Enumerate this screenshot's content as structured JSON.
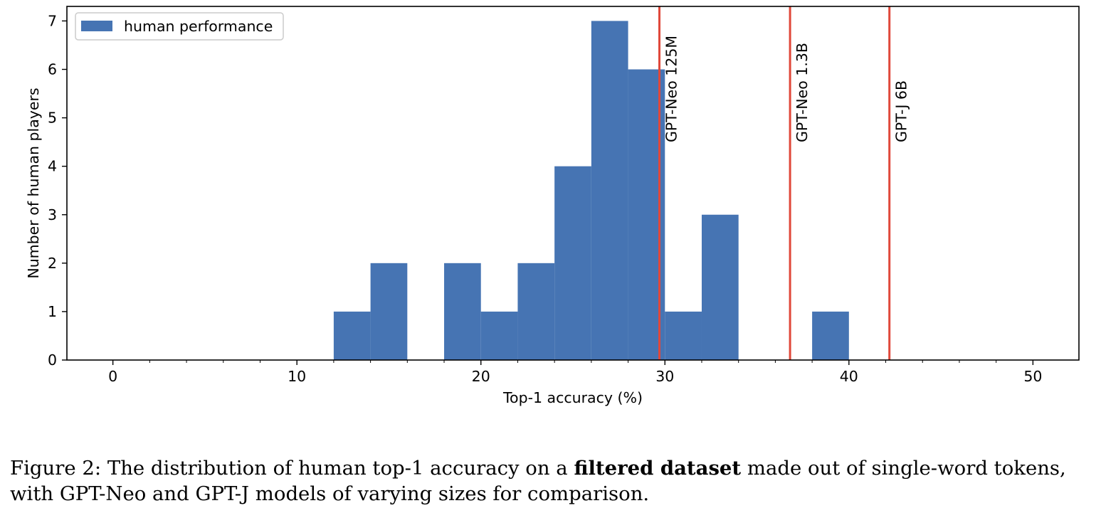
{
  "chart_data": {
    "type": "bar",
    "subtype": "histogram",
    "xlabel": "Top-1 accuracy (%)",
    "ylabel": "Number of human players",
    "xlim": [
      -2.5,
      52.5
    ],
    "ylim": [
      0,
      7.3
    ],
    "xticks": [
      0,
      10,
      20,
      30,
      40,
      50
    ],
    "xticks_minor": [
      2,
      4,
      6,
      8,
      12,
      14,
      16,
      18,
      22,
      24,
      26,
      28,
      32,
      34,
      36,
      38,
      42,
      44,
      46,
      48
    ],
    "yticks": [
      0,
      1,
      2,
      3,
      4,
      5,
      6,
      7
    ],
    "grid": false,
    "legend_position": "top-left",
    "bar_color": "#4674b3",
    "vline_color": "#e0483a",
    "series": [
      {
        "name": "human performance",
        "bins": [
          {
            "x0": 12,
            "x1": 14,
            "count": 1
          },
          {
            "x0": 14,
            "x1": 16,
            "count": 2
          },
          {
            "x0": 18,
            "x1": 20,
            "count": 2
          },
          {
            "x0": 20,
            "x1": 22,
            "count": 1
          },
          {
            "x0": 22,
            "x1": 24,
            "count": 2
          },
          {
            "x0": 24,
            "x1": 26,
            "count": 4
          },
          {
            "x0": 26,
            "x1": 28,
            "count": 7
          },
          {
            "x0": 28,
            "x1": 30,
            "count": 6
          },
          {
            "x0": 30,
            "x1": 32,
            "count": 1
          },
          {
            "x0": 32,
            "x1": 34,
            "count": 3
          },
          {
            "x0": 38,
            "x1": 40,
            "count": 1
          }
        ]
      }
    ],
    "reference_lines": [
      {
        "label": "GPT-Neo 125M",
        "x": 29.7
      },
      {
        "label": "GPT-Neo 1.3B",
        "x": 36.8
      },
      {
        "label": "GPT-J 6B",
        "x": 42.2
      }
    ]
  },
  "caption": {
    "prefix": "Figure 2: The distribution of human top-1 accuracy on a ",
    "bold": "filtered dataset",
    "suffix_line1": " made out of single-word tokens,",
    "line2": "with GPT-Neo and GPT-J models of varying sizes for comparison."
  }
}
